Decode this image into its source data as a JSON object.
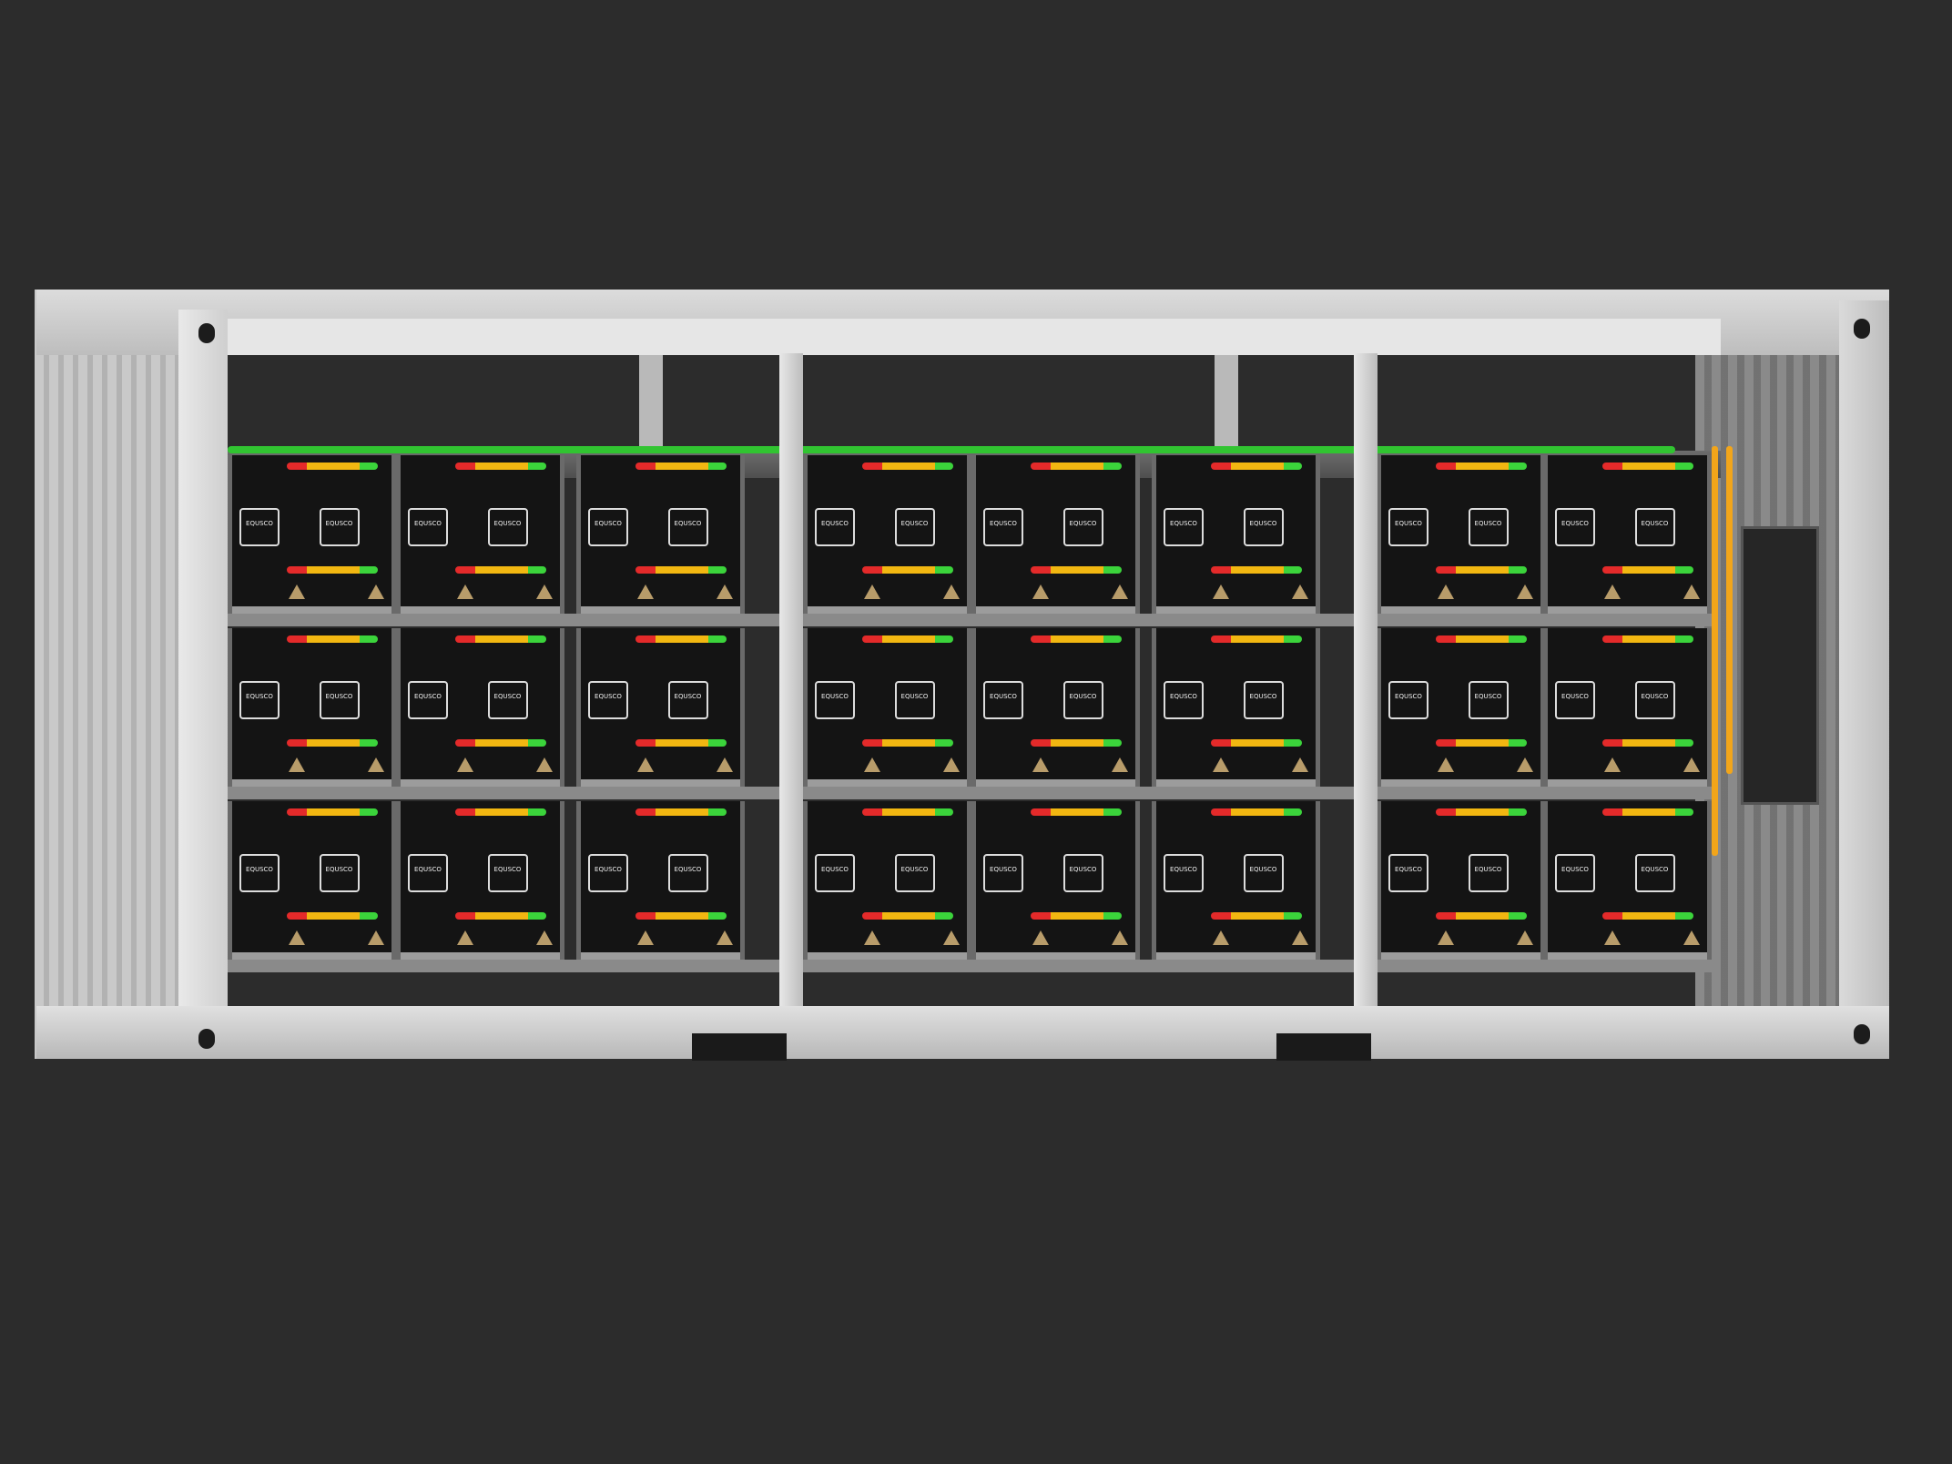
{
  "scene": {
    "subject": "battery-storage-container",
    "background_color": "#2c2c2c",
    "frame_color": "#d6d6d6",
    "rows": 3,
    "cabinets_per_row": 8,
    "modules_per_cabinet": 2,
    "module_logo": "EQUSCO",
    "cable_colors": {
      "positive": "#e42a2a",
      "link": "#f2b711",
      "negative": "#3bd43b",
      "bus": "#31c431"
    }
  }
}
